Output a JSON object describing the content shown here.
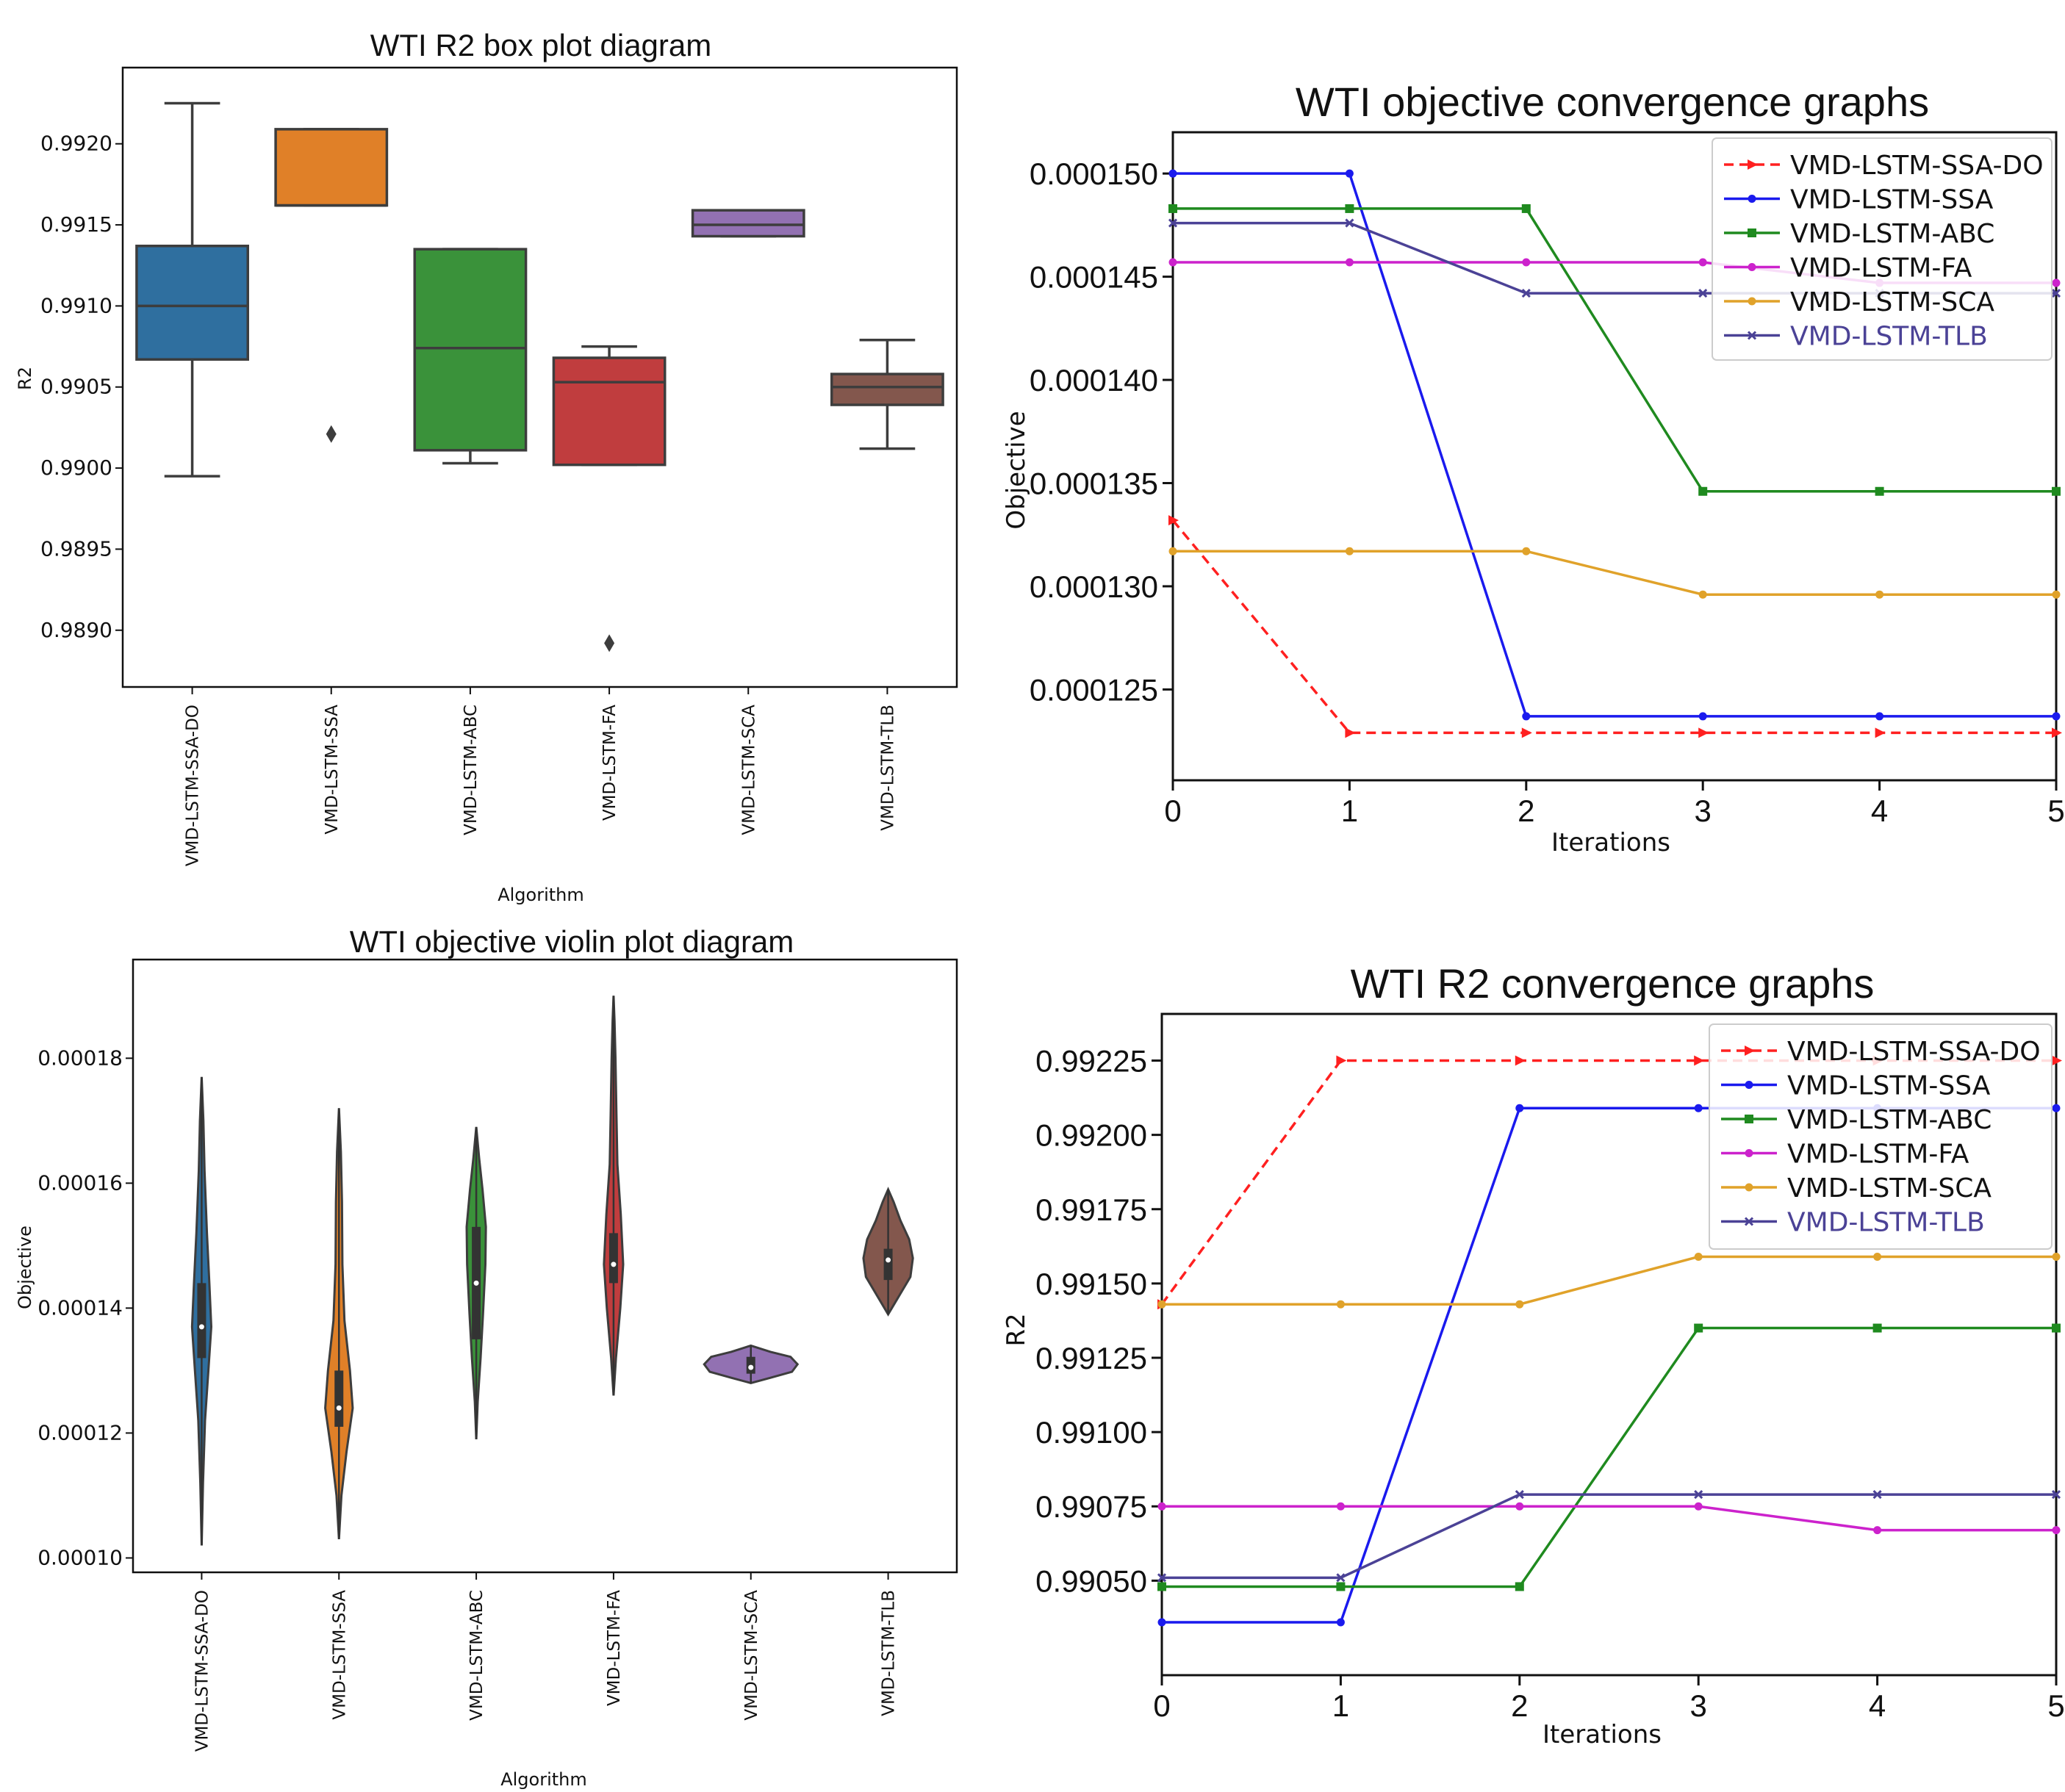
{
  "chart_data": [
    {
      "id": "box",
      "type": "box",
      "title": "WTI R2 box plot diagram",
      "xlabel": "Algorithm",
      "ylabel": "R2",
      "ylim": [
        0.98865,
        0.99247
      ],
      "yticks": [
        "0.9890",
        "0.9895",
        "0.9900",
        "0.9905",
        "0.9910",
        "0.9915",
        "0.9920"
      ],
      "categories": [
        "VMD-LSTM-SSA-DO",
        "VMD-LSTM-SSA",
        "VMD-LSTM-ABC",
        "VMD-LSTM-FA",
        "VMD-LSTM-SCA",
        "VMD-LSTM-TLB"
      ],
      "colors": [
        "#2f6f9f",
        "#e08028",
        "#3a923a",
        "#c03d3e",
        "#9271b2",
        "#83574d"
      ],
      "boxes": [
        {
          "q1": 0.99067,
          "median": 0.991,
          "q3": 0.99137,
          "whisker_low": 0.98995,
          "whisker_high": 0.99225,
          "outliers": []
        },
        {
          "q1": 0.99162,
          "median": 0.99162,
          "q3": 0.99209,
          "whisker_low": 0.99162,
          "whisker_high": 0.99209,
          "outliers": [
            0.99021
          ]
        },
        {
          "q1": 0.99011,
          "median": 0.99074,
          "q3": 0.99135,
          "whisker_low": 0.99003,
          "whisker_high": 0.99135,
          "outliers": []
        },
        {
          "q1": 0.99002,
          "median": 0.99053,
          "q3": 0.99068,
          "whisker_low": 0.99002,
          "whisker_high": 0.99075,
          "outliers": [
            0.98892
          ]
        },
        {
          "q1": 0.99143,
          "median": 0.9915,
          "q3": 0.99159,
          "whisker_low": 0.99143,
          "whisker_high": 0.99159,
          "outliers": []
        },
        {
          "q1": 0.99039,
          "median": 0.9905,
          "q3": 0.99058,
          "whisker_low": 0.99012,
          "whisker_high": 0.99079,
          "outliers": []
        }
      ]
    },
    {
      "id": "objconv",
      "type": "line",
      "title": "WTI objective convergence graphs",
      "xlabel": "Iterations",
      "ylabel": "Objective",
      "x": [
        0,
        1,
        2,
        3,
        4,
        5
      ],
      "xticks": [
        "0",
        "1",
        "2",
        "3",
        "4",
        "5"
      ],
      "ylim": [
        0.0001206,
        0.000152
      ],
      "yticks": [
        "0.000125",
        "0.000130",
        "0.000135",
        "0.000140",
        "0.000145",
        "0.000150"
      ],
      "legend_position": "top-right",
      "series": [
        {
          "name": "VMD-LSTM-SSA-DO",
          "color": "#ff2020",
          "dashed": true,
          "marker": "triangle",
          "values": [
            0.0001332,
            0.0001229,
            0.0001229,
            0.0001229,
            0.0001229,
            0.0001229
          ]
        },
        {
          "name": "VMD-LSTM-SSA",
          "color": "#1a1aee",
          "dashed": false,
          "marker": "circle",
          "values": [
            0.00015,
            0.00015,
            0.0001237,
            0.0001237,
            0.0001237,
            0.0001237
          ]
        },
        {
          "name": "VMD-LSTM-ABC",
          "color": "#1f8a1f",
          "dashed": false,
          "marker": "square",
          "values": [
            0.0001483,
            0.0001483,
            0.0001483,
            0.0001346,
            0.0001346,
            0.0001346
          ]
        },
        {
          "name": "VMD-LSTM-FA",
          "color": "#cc22cc",
          "dashed": false,
          "marker": "circle",
          "values": [
            0.0001457,
            0.0001457,
            0.0001457,
            0.0001457,
            0.0001447,
            0.0001447
          ]
        },
        {
          "name": "VMD-LSTM-SCA",
          "color": "#e0a22a",
          "dashed": false,
          "marker": "circle",
          "values": [
            0.0001317,
            0.0001317,
            0.0001317,
            0.0001296,
            0.0001296,
            0.0001296
          ]
        },
        {
          "name": "VMD-LSTM-TLB",
          "color": "#4b4296",
          "dashed": false,
          "marker": "x",
          "values": [
            0.0001476,
            0.0001476,
            0.0001442,
            0.0001442,
            0.0001442,
            0.0001442
          ]
        }
      ]
    },
    {
      "id": "violin",
      "type": "violin",
      "title": "WTI objective violin plot diagram",
      "xlabel": "Algorithm",
      "ylabel": "Objective",
      "ylim": [
        9.77e-05,
        0.0001958
      ],
      "yticks": [
        "0.00010",
        "0.00012",
        "0.00014",
        "0.00016",
        "0.00018"
      ],
      "categories": [
        "VMD-LSTM-SSA-DO",
        "VMD-LSTM-SSA",
        "VMD-LSTM-ABC",
        "VMD-LSTM-FA",
        "VMD-LSTM-SCA",
        "VMD-LSTM-TLB"
      ],
      "colors": [
        "#2f6f9f",
        "#e08028",
        "#3a923a",
        "#c03d3e",
        "#9271b2",
        "#83574d"
      ],
      "violins": [
        {
          "min": 0.000102,
          "max": 0.000177,
          "q1": 0.000132,
          "median": 0.000137,
          "q3": 0.000144,
          "max_width": 0.07,
          "shape": [
            [
              0.000102,
              0.0
            ],
            [
              0.000112,
              0.14
            ],
            [
              0.000122,
              0.35
            ],
            [
              0.00013,
              0.7
            ],
            [
              0.000137,
              1.0
            ],
            [
              0.000144,
              0.8
            ],
            [
              0.000152,
              0.55
            ],
            [
              0.000162,
              0.3
            ],
            [
              0.00017,
              0.18
            ],
            [
              0.000177,
              0.0
            ]
          ]
        },
        {
          "min": 0.000103,
          "max": 0.000172,
          "q1": 0.000121,
          "median": 0.000124,
          "q3": 0.00013,
          "max_width": 0.1,
          "shape": [
            [
              0.000103,
              0.0
            ],
            [
              0.00011,
              0.18
            ],
            [
              0.000117,
              0.55
            ],
            [
              0.000124,
              1.0
            ],
            [
              0.00013,
              0.8
            ],
            [
              0.000138,
              0.4
            ],
            [
              0.000147,
              0.25
            ],
            [
              0.000157,
              0.22
            ],
            [
              0.000165,
              0.14
            ],
            [
              0.000172,
              0.0
            ]
          ]
        },
        {
          "min": 0.000119,
          "max": 0.000169,
          "q1": 0.000135,
          "median": 0.000144,
          "q3": 0.000153,
          "max_width": 0.07,
          "shape": [
            [
              0.000119,
              0.0
            ],
            [
              0.000125,
              0.15
            ],
            [
              0.000132,
              0.45
            ],
            [
              0.000139,
              0.7
            ],
            [
              0.000147,
              0.95
            ],
            [
              0.000153,
              1.0
            ],
            [
              0.000159,
              0.65
            ],
            [
              0.000164,
              0.3
            ],
            [
              0.000169,
              0.0
            ]
          ]
        },
        {
          "min": 0.000126,
          "max": 0.00019,
          "q1": 0.000144,
          "median": 0.000147,
          "q3": 0.000152,
          "max_width": 0.07,
          "shape": [
            [
              0.000126,
              0.0
            ],
            [
              0.000132,
              0.25
            ],
            [
              0.00014,
              0.7
            ],
            [
              0.000147,
              1.0
            ],
            [
              0.000155,
              0.75
            ],
            [
              0.000163,
              0.4
            ],
            [
              0.000171,
              0.3
            ],
            [
              0.00018,
              0.2
            ],
            [
              0.000186,
              0.1
            ],
            [
              0.00019,
              0.0
            ]
          ]
        },
        {
          "min": 0.000128,
          "max": 0.000134,
          "q1": 0.0001295,
          "median": 0.0001305,
          "q3": 0.0001322,
          "max_width": 0.34,
          "shape": [
            [
              0.000128,
              0.0
            ],
            [
              0.0001288,
              0.4
            ],
            [
              0.0001298,
              0.88
            ],
            [
              0.000131,
              1.0
            ],
            [
              0.0001322,
              0.85
            ],
            [
              0.000133,
              0.42
            ],
            [
              0.000134,
              0.0
            ]
          ]
        },
        {
          "min": 0.000139,
          "max": 0.000159,
          "q1": 0.0001445,
          "median": 0.0001477,
          "q3": 0.0001495,
          "max_width": 0.18,
          "shape": [
            [
              0.000139,
              0.0
            ],
            [
              0.000142,
              0.45
            ],
            [
              0.000145,
              0.9
            ],
            [
              0.000148,
              1.0
            ],
            [
              0.000151,
              0.85
            ],
            [
              0.000154,
              0.5
            ],
            [
              0.000157,
              0.22
            ],
            [
              0.000159,
              0.0
            ]
          ]
        }
      ]
    },
    {
      "id": "r2conv",
      "type": "line",
      "title": "WTI R2 convergence graphs",
      "xlabel": "Iterations",
      "ylabel": "R2",
      "x": [
        0,
        1,
        2,
        3,
        4,
        5
      ],
      "xticks": [
        "0",
        "1",
        "2",
        "3",
        "4",
        "5"
      ],
      "ylim": [
        0.990182,
        0.992407
      ],
      "yticks": [
        "0.99050",
        "0.99075",
        "0.99100",
        "0.99125",
        "0.99150",
        "0.99175",
        "0.99200",
        "0.99225"
      ],
      "legend_position": "top-right",
      "series": [
        {
          "name": "VMD-LSTM-SSA-DO",
          "color": "#ff2020",
          "dashed": true,
          "marker": "triangle",
          "values": [
            0.99143,
            0.99225,
            0.99225,
            0.99225,
            0.99225,
            0.99225
          ]
        },
        {
          "name": "VMD-LSTM-SSA",
          "color": "#1a1aee",
          "dashed": false,
          "marker": "circle",
          "values": [
            0.99036,
            0.99036,
            0.99209,
            0.99209,
            0.99209,
            0.99209
          ]
        },
        {
          "name": "VMD-LSTM-ABC",
          "color": "#1f8a1f",
          "dashed": false,
          "marker": "square",
          "values": [
            0.99048,
            0.99048,
            0.99048,
            0.99135,
            0.99135,
            0.99135
          ]
        },
        {
          "name": "VMD-LSTM-FA",
          "color": "#cc22cc",
          "dashed": false,
          "marker": "circle",
          "values": [
            0.99075,
            0.99075,
            0.99075,
            0.99075,
            0.99067,
            0.99067
          ]
        },
        {
          "name": "VMD-LSTM-SCA",
          "color": "#e0a22a",
          "dashed": false,
          "marker": "circle",
          "values": [
            0.99143,
            0.99143,
            0.99143,
            0.99159,
            0.99159,
            0.99159
          ]
        },
        {
          "name": "VMD-LSTM-TLB",
          "color": "#4b4296",
          "dashed": false,
          "marker": "x",
          "values": [
            0.99051,
            0.99051,
            0.99079,
            0.99079,
            0.99079,
            0.99079
          ]
        }
      ]
    }
  ]
}
